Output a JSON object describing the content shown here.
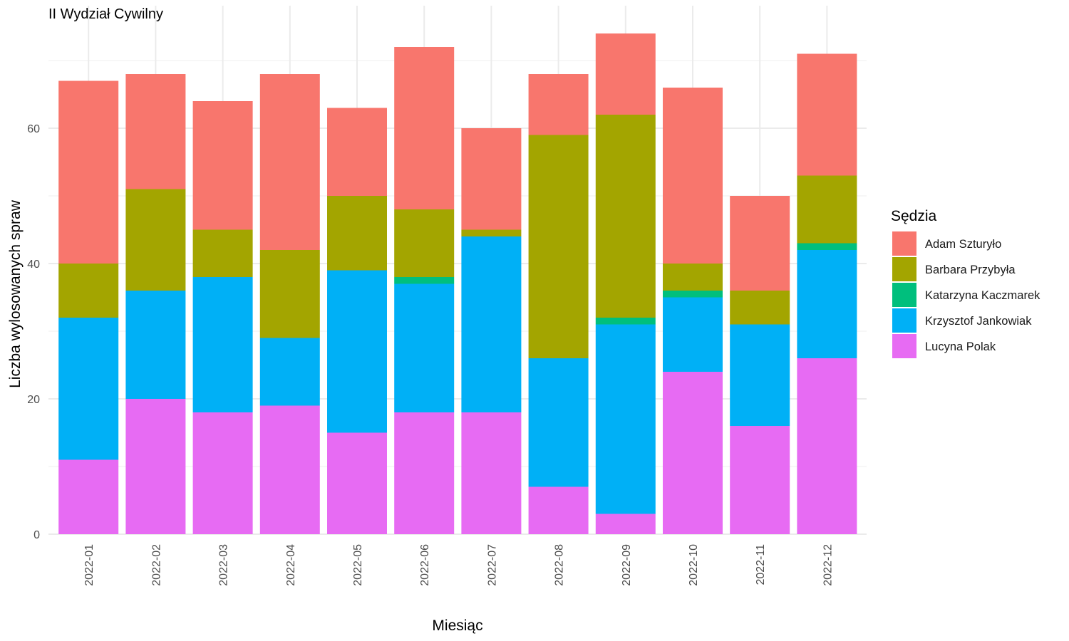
{
  "chart_data": {
    "type": "bar",
    "stacked": true,
    "title": "II Wydział Cywilny",
    "xlabel": "Miesiąc",
    "ylabel": "Liczba wylosowanych spraw",
    "ylim": [
      0,
      77
    ],
    "yticks": [
      0,
      20,
      40,
      60
    ],
    "grid": true,
    "legend_title": "Sędzia",
    "legend_position": "right",
    "categories": [
      "2022-01",
      "2022-02",
      "2022-03",
      "2022-04",
      "2022-05",
      "2022-06",
      "2022-07",
      "2022-08",
      "2022-09",
      "2022-10",
      "2022-11",
      "2022-12"
    ],
    "series": [
      {
        "name": "Adam Szturyło",
        "color": "#F8766D",
        "values": [
          27,
          17,
          19,
          26,
          13,
          24,
          15,
          9,
          12,
          26,
          14,
          18
        ]
      },
      {
        "name": "Barbara Przybyła",
        "color": "#A3A500",
        "values": [
          8,
          15,
          7,
          13,
          11,
          10,
          1,
          33,
          30,
          4,
          5,
          10
        ]
      },
      {
        "name": "Katarzyna Kaczmarek",
        "color": "#00BF7D",
        "values": [
          0,
          0,
          0,
          0,
          0,
          1,
          0,
          0,
          1,
          1,
          0,
          1
        ]
      },
      {
        "name": "Krzysztof Jankowiak",
        "color": "#00B0F6",
        "values": [
          21,
          16,
          20,
          10,
          24,
          19,
          26,
          19,
          28,
          11,
          15,
          16
        ]
      },
      {
        "name": "Lucyna Polak",
        "color": "#E76BF3",
        "values": [
          11,
          20,
          18,
          19,
          15,
          18,
          18,
          7,
          3,
          24,
          16,
          26
        ]
      }
    ]
  }
}
